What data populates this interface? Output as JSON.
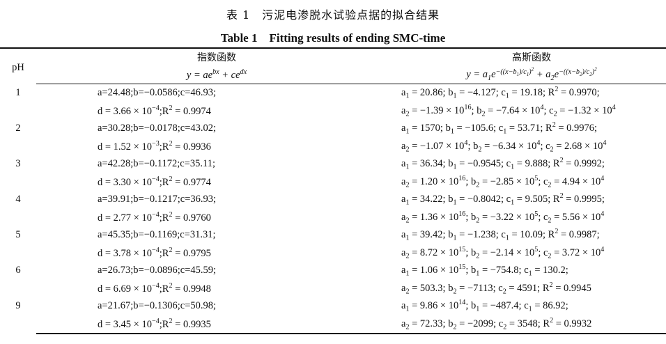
{
  "caption_cn": "表 1　污泥电渗脱水试验点据的拟合结果",
  "caption_en": "Table 1　Fitting results of ending SMC-time",
  "header": {
    "ph": "pH",
    "exp_title": "指数函数",
    "exp_formula": [
      "y = ae",
      [
        "^",
        "bx"
      ],
      " + ce",
      [
        "^",
        "dx"
      ]
    ],
    "gauss_title": "高斯函数",
    "gauss_formula": [
      "y = a",
      [
        "_",
        "1"
      ],
      "e",
      [
        "^",
        [
          "−((x−b",
          [
            "_",
            "1"
          ],
          ")/c",
          [
            "_",
            "1"
          ],
          ")",
          [
            "^",
            "2"
          ]
        ]
      ],
      " + a",
      [
        "_",
        "2"
      ],
      "e",
      [
        "^",
        [
          "−((x−b",
          [
            "_",
            "2"
          ],
          ")/c",
          [
            "_",
            "2"
          ],
          ")",
          [
            "^",
            "2"
          ]
        ]
      ]
    ]
  },
  "rows": [
    {
      "ph": "1",
      "exp": [
        [
          "a=24.48;b=−0.0586;c=46.93;"
        ],
        [
          "d = 3.66 × 10",
          [
            "^",
            "−4"
          ],
          ";R",
          [
            "^",
            "2"
          ],
          " = 0.9974"
        ]
      ],
      "gauss": [
        [
          "a",
          [
            "_",
            "1"
          ],
          " = 20.86; b",
          [
            "_",
            "1"
          ],
          " = −4.127; c",
          [
            "_",
            "1"
          ],
          " = 19.18; R",
          [
            "^",
            "2"
          ],
          " = 0.9970;"
        ],
        [
          "a",
          [
            "_",
            "2"
          ],
          " = −1.39 × 10",
          [
            "^",
            "16"
          ],
          "; b",
          [
            "_",
            "2"
          ],
          " = −7.64 × 10",
          [
            "^",
            "4"
          ],
          "; c",
          [
            "_",
            "2"
          ],
          " = −1.32 × 10",
          [
            "^",
            "4"
          ]
        ]
      ]
    },
    {
      "ph": "2",
      "exp": [
        [
          "a=30.28;b=−0.0178;c=43.02;"
        ],
        [
          "d = 1.52 × 10",
          [
            "^",
            "−3"
          ],
          ";R",
          [
            "^",
            "2"
          ],
          " = 0.9936"
        ]
      ],
      "gauss": [
        [
          "a",
          [
            "_",
            "1"
          ],
          " = 1570; b",
          [
            "_",
            "1"
          ],
          " = −105.6; c",
          [
            "_",
            "1"
          ],
          " = 53.71; R",
          [
            "^",
            "2"
          ],
          " = 0.9976;"
        ],
        [
          "a",
          [
            "_",
            "2"
          ],
          " = −1.07 × 10",
          [
            "^",
            "4"
          ],
          "; b",
          [
            "_",
            "2"
          ],
          " = −6.34 × 10",
          [
            "^",
            "4"
          ],
          "; c",
          [
            "_",
            "2"
          ],
          " = 2.68 × 10",
          [
            "^",
            "4"
          ]
        ]
      ]
    },
    {
      "ph": "3",
      "exp": [
        [
          "a=42.28;b=−0.1172;c=35.11;"
        ],
        [
          "d = 3.30 × 10",
          [
            "^",
            "−4"
          ],
          ";R",
          [
            "^",
            "2"
          ],
          " = 0.9774"
        ]
      ],
      "gauss": [
        [
          "a",
          [
            "_",
            "1"
          ],
          " = 36.34; b",
          [
            "_",
            "1"
          ],
          " = −0.9545; c",
          [
            "_",
            "1"
          ],
          " = 9.888; R",
          [
            "^",
            "2"
          ],
          " = 0.9992;"
        ],
        [
          "a",
          [
            "_",
            "2"
          ],
          " = 1.20 × 10",
          [
            "^",
            "16"
          ],
          "; b",
          [
            "_",
            "2"
          ],
          " = −2.85 × 10",
          [
            "^",
            "5"
          ],
          "; c",
          [
            "_",
            "2"
          ],
          " = 4.94 × 10",
          [
            "^",
            "4"
          ]
        ]
      ]
    },
    {
      "ph": "4",
      "exp": [
        [
          "a=39.91;b=−0.1217;c=36.93;"
        ],
        [
          "d = 2.77 × 10",
          [
            "^",
            "−4"
          ],
          ";R",
          [
            "^",
            "2"
          ],
          " = 0.9760"
        ]
      ],
      "gauss": [
        [
          "a",
          [
            "_",
            "1"
          ],
          " = 34.22; b",
          [
            "_",
            "1"
          ],
          " = −0.8042; c",
          [
            "_",
            "1"
          ],
          " = 9.505; R",
          [
            "^",
            "2"
          ],
          " = 0.9995;"
        ],
        [
          "a",
          [
            "_",
            "2"
          ],
          " = 1.36 × 10",
          [
            "^",
            "16"
          ],
          "; b",
          [
            "_",
            "2"
          ],
          " = −3.22 × 10",
          [
            "^",
            "5"
          ],
          "; c",
          [
            "_",
            "2"
          ],
          " = 5.56 × 10",
          [
            "^",
            "4"
          ]
        ]
      ]
    },
    {
      "ph": "5",
      "exp": [
        [
          "a=45.35;b=−0.1169;c=31.31;"
        ],
        [
          "d = 3.78 × 10",
          [
            "^",
            "−4"
          ],
          ";R",
          [
            "^",
            "2"
          ],
          " = 0.9795"
        ]
      ],
      "gauss": [
        [
          "a",
          [
            "_",
            "1"
          ],
          " = 39.42; b",
          [
            "_",
            "1"
          ],
          " = −1.238; c",
          [
            "_",
            "1"
          ],
          " = 10.09; R",
          [
            "^",
            "2"
          ],
          " = 0.9987;"
        ],
        [
          "a",
          [
            "_",
            "2"
          ],
          " = 8.72 × 10",
          [
            "^",
            "15"
          ],
          "; b",
          [
            "_",
            "2"
          ],
          " = −2.14 × 10",
          [
            "^",
            "5"
          ],
          "; c",
          [
            "_",
            "2"
          ],
          " = 3.72 × 10",
          [
            "^",
            "4"
          ]
        ]
      ]
    },
    {
      "ph": "6",
      "exp": [
        [
          "a=26.73;b=−0.0896;c=45.59;"
        ],
        [
          "d = 6.69 × 10",
          [
            "^",
            "−4"
          ],
          ";R",
          [
            "^",
            "2"
          ],
          " = 0.9948"
        ]
      ],
      "gauss": [
        [
          "a",
          [
            "_",
            "1"
          ],
          " = 1.06 × 10",
          [
            "^",
            "15"
          ],
          "; b",
          [
            "_",
            "1"
          ],
          " = −754.8; c",
          [
            "_",
            "1"
          ],
          " = 130.2;"
        ],
        [
          "a",
          [
            "_",
            "2"
          ],
          " = 503.3; b",
          [
            "_",
            "2"
          ],
          " = −7113; c",
          [
            "_",
            "2"
          ],
          " = 4591; R",
          [
            "^",
            "2"
          ],
          " = 0.9945"
        ]
      ]
    },
    {
      "ph": "9",
      "exp": [
        [
          "a=21.67;b=−0.1306;c=50.98;"
        ],
        [
          "d = 3.45 × 10",
          [
            "^",
            "−4"
          ],
          ";R",
          [
            "^",
            "2"
          ],
          " = 0.9935"
        ]
      ],
      "gauss": [
        [
          "a",
          [
            "_",
            "1"
          ],
          " = 9.86 × 10",
          [
            "^",
            "14"
          ],
          "; b",
          [
            "_",
            "1"
          ],
          " = −487.4; c",
          [
            "_",
            "1"
          ],
          " = 86.92;"
        ],
        [
          "a",
          [
            "_",
            "2"
          ],
          " = 72.33; b",
          [
            "_",
            "2"
          ],
          " = −2099; c",
          [
            "_",
            "2"
          ],
          " = 3548; R",
          [
            "^",
            "2"
          ],
          " = 0.9932"
        ]
      ]
    }
  ]
}
